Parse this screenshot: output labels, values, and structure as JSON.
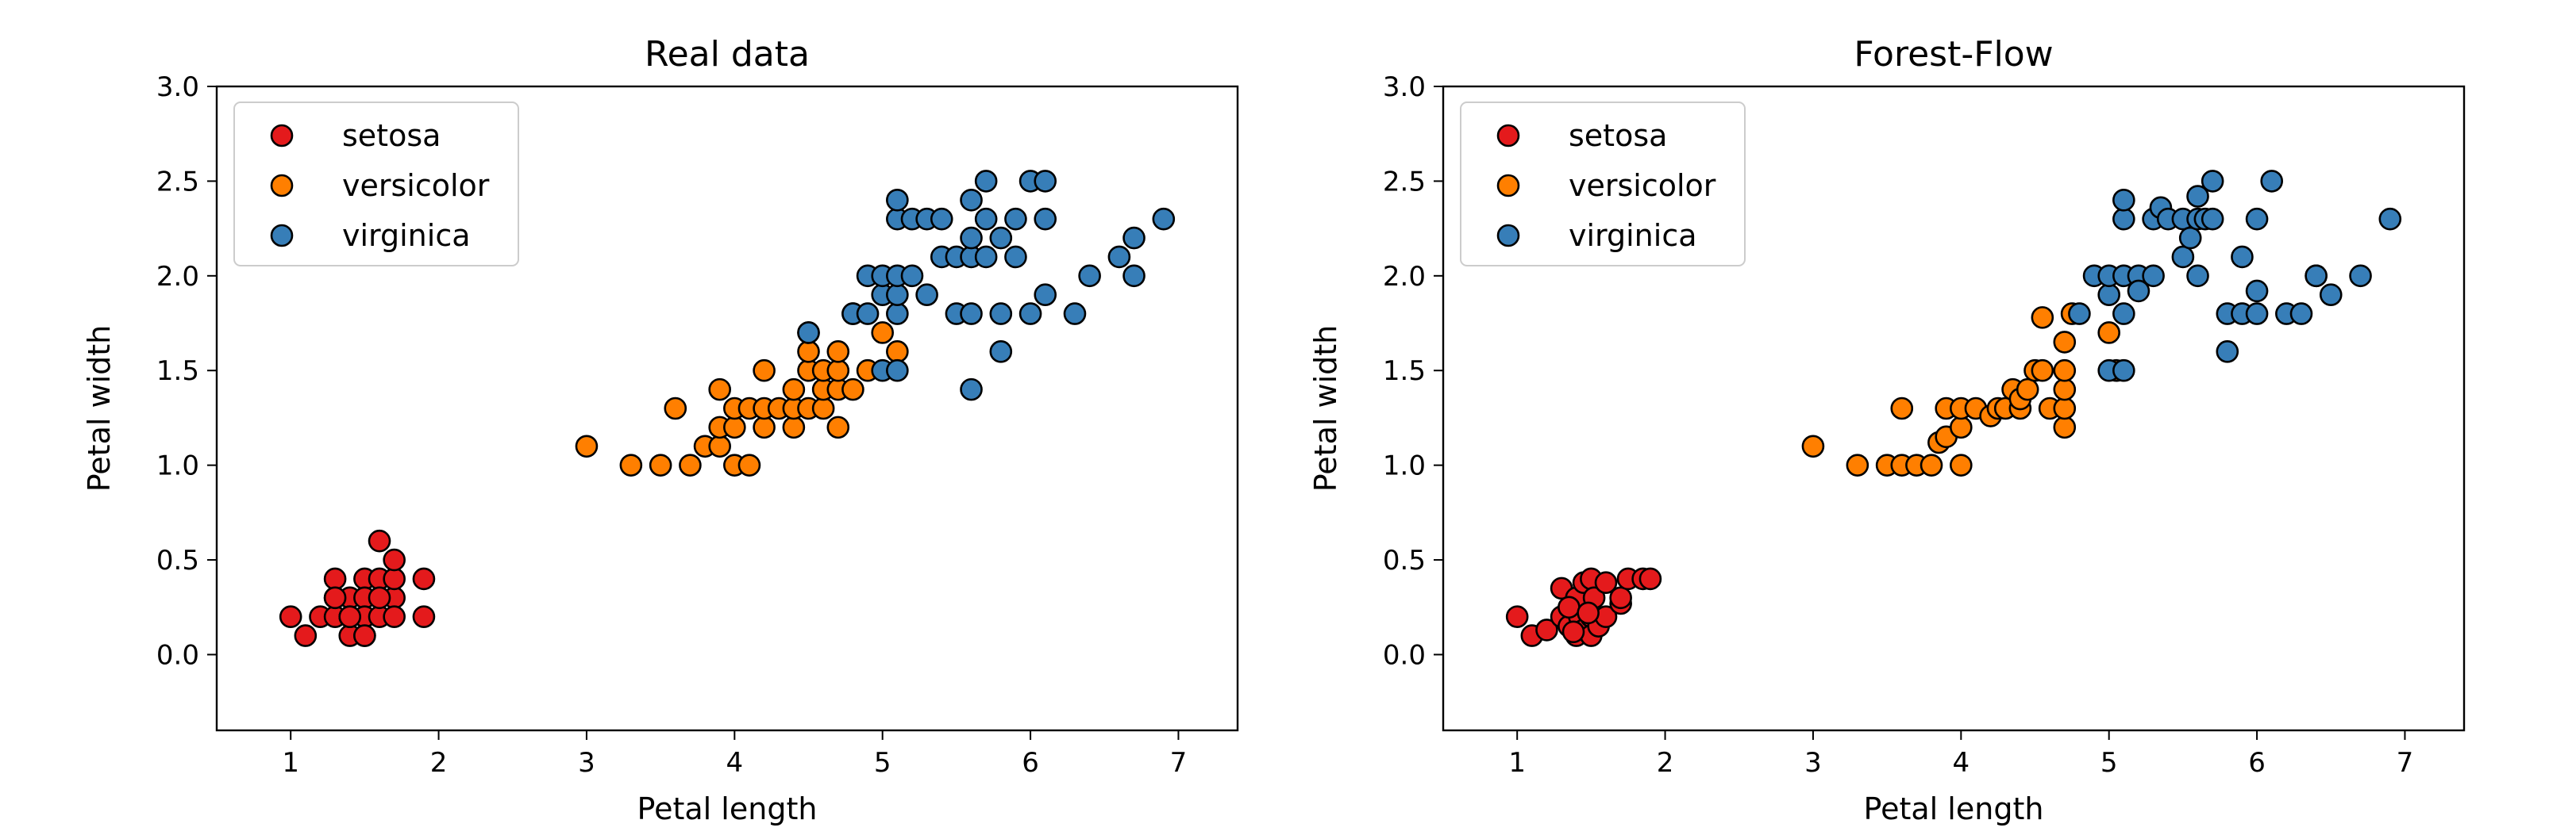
{
  "chart_data": [
    {
      "type": "scatter",
      "title": "Real data",
      "xlabel": "Petal length",
      "ylabel": "Petal width",
      "xlim": [
        0.5,
        7.4
      ],
      "ylim": [
        -0.4,
        3.0
      ],
      "xticks": [
        1,
        2,
        3,
        4,
        5,
        6,
        7
      ],
      "yticks": [
        0.0,
        0.5,
        1.0,
        1.5,
        2.0,
        2.5,
        3.0
      ],
      "grid": false,
      "legend_position": "top-left",
      "series": [
        {
          "name": "setosa",
          "color": "#e41a1c",
          "points": [
            [
              1.0,
              0.2
            ],
            [
              1.1,
              0.1
            ],
            [
              1.2,
              0.2
            ],
            [
              1.3,
              0.2
            ],
            [
              1.3,
              0.3
            ],
            [
              1.3,
              0.4
            ],
            [
              1.4,
              0.2
            ],
            [
              1.4,
              0.1
            ],
            [
              1.4,
              0.3
            ],
            [
              1.4,
              0.2
            ],
            [
              1.5,
              0.2
            ],
            [
              1.5,
              0.1
            ],
            [
              1.5,
              0.4
            ],
            [
              1.5,
              0.3
            ],
            [
              1.5,
              0.2
            ],
            [
              1.6,
              0.2
            ],
            [
              1.6,
              0.4
            ],
            [
              1.6,
              0.6
            ],
            [
              1.7,
              0.3
            ],
            [
              1.7,
              0.4
            ],
            [
              1.7,
              0.5
            ],
            [
              1.7,
              0.2
            ],
            [
              1.9,
              0.2
            ],
            [
              1.9,
              0.4
            ],
            [
              1.6,
              0.3
            ],
            [
              1.4,
              0.2
            ],
            [
              1.5,
              0.1
            ],
            [
              1.3,
              0.3
            ]
          ]
        },
        {
          "name": "versicolor",
          "color": "#ff7f00",
          "points": [
            [
              3.0,
              1.1
            ],
            [
              3.3,
              1.0
            ],
            [
              3.5,
              1.0
            ],
            [
              3.6,
              1.3
            ],
            [
              3.7,
              1.0
            ],
            [
              3.8,
              1.1
            ],
            [
              3.9,
              1.1
            ],
            [
              3.9,
              1.2
            ],
            [
              3.9,
              1.4
            ],
            [
              4.0,
              1.0
            ],
            [
              4.0,
              1.2
            ],
            [
              4.0,
              1.3
            ],
            [
              4.1,
              1.0
            ],
            [
              4.1,
              1.3
            ],
            [
              4.2,
              1.2
            ],
            [
              4.2,
              1.3
            ],
            [
              4.2,
              1.5
            ],
            [
              4.3,
              1.3
            ],
            [
              4.4,
              1.2
            ],
            [
              4.4,
              1.3
            ],
            [
              4.4,
              1.4
            ],
            [
              4.5,
              1.3
            ],
            [
              4.5,
              1.5
            ],
            [
              4.5,
              1.6
            ],
            [
              4.6,
              1.3
            ],
            [
              4.6,
              1.4
            ],
            [
              4.6,
              1.5
            ],
            [
              4.7,
              1.2
            ],
            [
              4.7,
              1.4
            ],
            [
              4.7,
              1.5
            ],
            [
              4.7,
              1.6
            ],
            [
              4.8,
              1.4
            ],
            [
              4.8,
              1.8
            ],
            [
              4.9,
              1.5
            ],
            [
              5.0,
              1.7
            ],
            [
              5.1,
              1.6
            ],
            [
              4.5,
              1.7
            ]
          ]
        },
        {
          "name": "virginica",
          "color": "#377eb8",
          "points": [
            [
              4.5,
              1.7
            ],
            [
              4.8,
              1.8
            ],
            [
              4.9,
              1.8
            ],
            [
              4.9,
              2.0
            ],
            [
              5.0,
              1.5
            ],
            [
              5.0,
              1.9
            ],
            [
              5.0,
              2.0
            ],
            [
              5.1,
              1.5
            ],
            [
              5.1,
              1.8
            ],
            [
              5.1,
              1.9
            ],
            [
              5.1,
              2.0
            ],
            [
              5.1,
              2.3
            ],
            [
              5.1,
              2.4
            ],
            [
              5.2,
              2.0
            ],
            [
              5.2,
              2.3
            ],
            [
              5.3,
              1.9
            ],
            [
              5.3,
              2.3
            ],
            [
              5.4,
              2.1
            ],
            [
              5.4,
              2.3
            ],
            [
              5.5,
              1.8
            ],
            [
              5.5,
              2.1
            ],
            [
              5.6,
              1.4
            ],
            [
              5.6,
              1.8
            ],
            [
              5.6,
              2.1
            ],
            [
              5.6,
              2.2
            ],
            [
              5.6,
              2.4
            ],
            [
              5.7,
              2.1
            ],
            [
              5.7,
              2.3
            ],
            [
              5.7,
              2.5
            ],
            [
              5.8,
              1.6
            ],
            [
              5.8,
              1.8
            ],
            [
              5.8,
              2.2
            ],
            [
              5.9,
              2.1
            ],
            [
              5.9,
              2.3
            ],
            [
              6.0,
              1.8
            ],
            [
              6.0,
              2.5
            ],
            [
              6.1,
              1.9
            ],
            [
              6.1,
              2.3
            ],
            [
              6.1,
              2.5
            ],
            [
              6.3,
              1.8
            ],
            [
              6.4,
              2.0
            ],
            [
              6.6,
              2.1
            ],
            [
              6.7,
              2.0
            ],
            [
              6.7,
              2.2
            ],
            [
              6.9,
              2.3
            ]
          ]
        }
      ]
    },
    {
      "type": "scatter",
      "title": "Forest-Flow",
      "xlabel": "Petal length",
      "ylabel": "Petal width",
      "xlim": [
        0.5,
        7.4
      ],
      "ylim": [
        -0.4,
        3.0
      ],
      "xticks": [
        1,
        2,
        3,
        4,
        5,
        6,
        7
      ],
      "yticks": [
        0.0,
        0.5,
        1.0,
        1.5,
        2.0,
        2.5,
        3.0
      ],
      "grid": false,
      "legend_position": "top-left",
      "series": [
        {
          "name": "setosa",
          "color": "#e41a1c",
          "points": [
            [
              1.0,
              0.2
            ],
            [
              1.1,
              0.1
            ],
            [
              1.2,
              0.13
            ],
            [
              1.3,
              0.2
            ],
            [
              1.3,
              0.35
            ],
            [
              1.35,
              0.15
            ],
            [
              1.4,
              0.1
            ],
            [
              1.4,
              0.3
            ],
            [
              1.42,
              0.2
            ],
            [
              1.45,
              0.38
            ],
            [
              1.45,
              0.13
            ],
            [
              1.5,
              0.2
            ],
            [
              1.5,
              0.1
            ],
            [
              1.5,
              0.4
            ],
            [
              1.52,
              0.3
            ],
            [
              1.55,
              0.15
            ],
            [
              1.6,
              0.2
            ],
            [
              1.6,
              0.38
            ],
            [
              1.7,
              0.27
            ],
            [
              1.7,
              0.3
            ],
            [
              1.75,
              0.4
            ],
            [
              1.85,
              0.4
            ],
            [
              1.9,
              0.4
            ],
            [
              1.35,
              0.25
            ],
            [
              1.48,
              0.22
            ],
            [
              1.38,
              0.12
            ]
          ]
        },
        {
          "name": "versicolor",
          "color": "#ff7f00",
          "points": [
            [
              3.0,
              1.1
            ],
            [
              3.3,
              1.0
            ],
            [
              3.5,
              1.0
            ],
            [
              3.6,
              1.3
            ],
            [
              3.6,
              1.0
            ],
            [
              3.7,
              1.0
            ],
            [
              3.8,
              1.0
            ],
            [
              3.85,
              1.12
            ],
            [
              3.9,
              1.15
            ],
            [
              3.9,
              1.3
            ],
            [
              4.0,
              1.0
            ],
            [
              4.0,
              1.2
            ],
            [
              4.0,
              1.3
            ],
            [
              4.1,
              1.3
            ],
            [
              4.2,
              1.26
            ],
            [
              4.25,
              1.3
            ],
            [
              4.3,
              1.3
            ],
            [
              4.35,
              1.4
            ],
            [
              4.4,
              1.3
            ],
            [
              4.4,
              1.35
            ],
            [
              4.45,
              1.4
            ],
            [
              4.5,
              1.5
            ],
            [
              4.55,
              1.5
            ],
            [
              4.55,
              1.78
            ],
            [
              4.6,
              1.3
            ],
            [
              4.7,
              1.2
            ],
            [
              4.7,
              1.3
            ],
            [
              4.7,
              1.4
            ],
            [
              4.7,
              1.5
            ],
            [
              4.7,
              1.65
            ],
            [
              4.75,
              1.8
            ],
            [
              5.0,
              1.7
            ],
            [
              5.05,
              1.5
            ]
          ]
        },
        {
          "name": "virginica",
          "color": "#377eb8",
          "points": [
            [
              4.8,
              1.8
            ],
            [
              4.9,
              2.0
            ],
            [
              5.0,
              1.9
            ],
            [
              5.0,
              2.0
            ],
            [
              5.0,
              1.5
            ],
            [
              5.1,
              1.5
            ],
            [
              5.1,
              1.8
            ],
            [
              5.1,
              2.0
            ],
            [
              5.1,
              2.3
            ],
            [
              5.1,
              2.4
            ],
            [
              5.2,
              2.0
            ],
            [
              5.2,
              1.92
            ],
            [
              5.3,
              2.0
            ],
            [
              5.3,
              2.3
            ],
            [
              5.35,
              2.36
            ],
            [
              5.4,
              2.3
            ],
            [
              5.5,
              2.1
            ],
            [
              5.5,
              2.3
            ],
            [
              5.55,
              2.2
            ],
            [
              5.6,
              2.0
            ],
            [
              5.6,
              2.3
            ],
            [
              5.6,
              2.42
            ],
            [
              5.65,
              2.3
            ],
            [
              5.7,
              2.3
            ],
            [
              5.7,
              2.5
            ],
            [
              5.8,
              1.6
            ],
            [
              5.8,
              1.8
            ],
            [
              5.9,
              1.8
            ],
            [
              5.9,
              2.1
            ],
            [
              6.0,
              1.8
            ],
            [
              6.0,
              1.92
            ],
            [
              6.0,
              2.3
            ],
            [
              6.1,
              2.5
            ],
            [
              6.2,
              1.8
            ],
            [
              6.3,
              1.8
            ],
            [
              6.4,
              2.0
            ],
            [
              6.4,
              2.0
            ],
            [
              6.5,
              1.9
            ],
            [
              6.7,
              2.0
            ],
            [
              6.9,
              2.3
            ]
          ]
        }
      ]
    }
  ]
}
